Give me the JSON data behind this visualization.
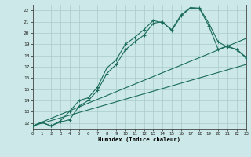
{
  "xlabel": "Humidex (Indice chaleur)",
  "bg_color": "#cce8e8",
  "grid_color": "#aacccc",
  "line_color": "#1a6b5a",
  "xlim": [
    0,
    23
  ],
  "ylim": [
    11.5,
    22.5
  ],
  "xticks": [
    0,
    1,
    2,
    3,
    4,
    5,
    6,
    7,
    8,
    9,
    10,
    11,
    12,
    13,
    14,
    15,
    16,
    17,
    18,
    19,
    20,
    21,
    22,
    23
  ],
  "yticks": [
    12,
    13,
    14,
    15,
    16,
    17,
    18,
    19,
    20,
    21,
    22
  ],
  "line1_x": [
    0,
    1,
    2,
    3,
    4,
    5,
    6,
    7,
    8,
    9,
    10,
    11,
    12,
    13,
    14,
    15,
    16,
    17,
    18,
    19,
    20,
    21,
    22,
    23
  ],
  "line1_y": [
    11.75,
    12.05,
    11.75,
    12.1,
    12.3,
    13.5,
    14.0,
    14.9,
    16.4,
    17.2,
    18.5,
    19.2,
    19.8,
    20.85,
    21.0,
    20.2,
    21.5,
    22.2,
    22.15,
    20.6,
    18.55,
    18.85,
    18.5,
    17.8
  ],
  "line2_x": [
    0,
    1,
    2,
    3,
    4,
    5,
    6,
    7,
    8,
    9,
    10,
    11,
    12,
    13,
    14,
    15,
    16,
    17,
    18,
    19,
    20,
    21,
    22,
    23
  ],
  "line2_y": [
    11.75,
    12.05,
    11.75,
    12.2,
    13.05,
    14.0,
    14.25,
    15.2,
    16.9,
    17.6,
    19.0,
    19.6,
    20.3,
    21.1,
    20.9,
    20.3,
    21.6,
    22.25,
    22.2,
    20.85,
    19.2,
    18.75,
    18.55,
    17.85
  ],
  "line3_x": [
    0,
    23
  ],
  "line3_y": [
    11.75,
    17.2
  ],
  "line4_x": [
    0,
    23
  ],
  "line4_y": [
    11.75,
    19.5
  ]
}
